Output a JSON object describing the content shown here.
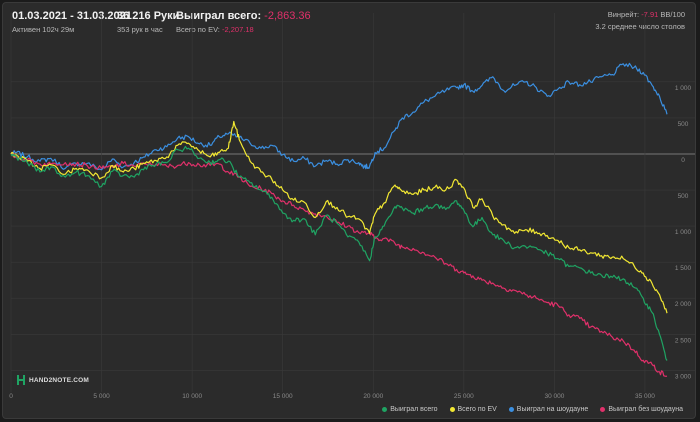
{
  "header": {
    "date_range": "01.03.2021 - 31.03.2021",
    "active": "Активен 102ч 29м",
    "hands": "36 216 Руки",
    "hands_per_hour": "353 рук в час",
    "won_total_label": "Выиграл всего:",
    "won_total_value": "-2,863.36",
    "ev_total_label": "Всего по EV:",
    "ev_total_value": "-2,207.18",
    "winrate_label": "Винрейт:",
    "winrate_value": "-7.91",
    "winrate_unit": "BB/100",
    "tables": "3.2 среднее число столов"
  },
  "logo_text": "HAND2NOTE.COM",
  "colors": {
    "background": "#2b2b2b",
    "won_total": "#1fa463",
    "ev": "#f2e832",
    "showdown": "#3b8fe0",
    "non_showdown": "#e0306a",
    "zero_line": "#777777",
    "grid": "#3a3a3a"
  },
  "chart_data": {
    "type": "line",
    "x_ticks": [
      0,
      5000,
      10000,
      15000,
      20000,
      25000,
      30000,
      35000
    ],
    "x_tick_labels": [
      "0",
      "5 000",
      "10 000",
      "15 000",
      "20 000",
      "25 000",
      "30 000",
      "35 000"
    ],
    "y_ticks": [
      1000,
      500,
      0,
      -500,
      -1000,
      -1500,
      -2000,
      -2500,
      -3000
    ],
    "y_tick_labels": [
      "1 000",
      "500",
      "0",
      "500",
      "1 000",
      "1 500",
      "2 000",
      "2 500",
      "3 000"
    ],
    "xlim": [
      0,
      36216
    ],
    "ylim": [
      -3300,
      1400
    ],
    "legend_position": "bottom-right",
    "grid": true,
    "series": [
      {
        "name": "Выиграл всего",
        "color": "#1fa463",
        "points": [
          [
            0,
            0
          ],
          [
            300,
            -40
          ],
          [
            900,
            -120
          ],
          [
            1600,
            -250
          ],
          [
            2200,
            -180
          ],
          [
            3000,
            -320
          ],
          [
            3600,
            -250
          ],
          [
            4200,
            -300
          ],
          [
            5000,
            -450
          ],
          [
            5600,
            -240
          ],
          [
            6200,
            -300
          ],
          [
            6800,
            -320
          ],
          [
            7400,
            -180
          ],
          [
            8000,
            -150
          ],
          [
            8600,
            -120
          ],
          [
            9200,
            60
          ],
          [
            9800,
            80
          ],
          [
            10400,
            -60
          ],
          [
            11000,
            -120
          ],
          [
            11500,
            -80
          ],
          [
            12000,
            -100
          ],
          [
            12600,
            -320
          ],
          [
            13200,
            -400
          ],
          [
            13800,
            -500
          ],
          [
            14400,
            -600
          ],
          [
            15000,
            -820
          ],
          [
            15600,
            -920
          ],
          [
            16200,
            -900
          ],
          [
            16800,
            -1120
          ],
          [
            17400,
            -850
          ],
          [
            18000,
            -960
          ],
          [
            18600,
            -1150
          ],
          [
            19200,
            -1220
          ],
          [
            19800,
            -1480
          ],
          [
            20100,
            -1150
          ],
          [
            20600,
            -1000
          ],
          [
            21200,
            -730
          ],
          [
            21600,
            -750
          ],
          [
            22200,
            -820
          ],
          [
            22800,
            -750
          ],
          [
            23400,
            -710
          ],
          [
            24000,
            -770
          ],
          [
            24600,
            -650
          ],
          [
            25000,
            -780
          ],
          [
            25500,
            -1010
          ],
          [
            26000,
            -880
          ],
          [
            26600,
            -1120
          ],
          [
            27200,
            -1200
          ],
          [
            27800,
            -1300
          ],
          [
            28400,
            -1280
          ],
          [
            29000,
            -1300
          ],
          [
            29600,
            -1380
          ],
          [
            30200,
            -1450
          ],
          [
            30800,
            -1560
          ],
          [
            31400,
            -1580
          ],
          [
            32000,
            -1650
          ],
          [
            32600,
            -1680
          ],
          [
            33200,
            -1710
          ],
          [
            33800,
            -1730
          ],
          [
            34400,
            -1850
          ],
          [
            34900,
            -2000
          ],
          [
            35400,
            -2200
          ],
          [
            35800,
            -2500
          ],
          [
            36216,
            -2863
          ]
        ]
      },
      {
        "name": "Всего по EV",
        "color": "#f2e832",
        "points": [
          [
            0,
            0
          ],
          [
            300,
            -20
          ],
          [
            900,
            -100
          ],
          [
            1600,
            -200
          ],
          [
            2200,
            -150
          ],
          [
            3000,
            -280
          ],
          [
            3600,
            -200
          ],
          [
            4200,
            -220
          ],
          [
            5000,
            -330
          ],
          [
            5600,
            -160
          ],
          [
            6200,
            -250
          ],
          [
            6800,
            -200
          ],
          [
            7400,
            -130
          ],
          [
            8000,
            -90
          ],
          [
            8600,
            -40
          ],
          [
            9200,
            120
          ],
          [
            9800,
            150
          ],
          [
            10400,
            40
          ],
          [
            11000,
            -40
          ],
          [
            11500,
            20
          ],
          [
            12000,
            80
          ],
          [
            12300,
            450
          ],
          [
            12600,
            200
          ],
          [
            13200,
            -100
          ],
          [
            13800,
            -250
          ],
          [
            14400,
            -350
          ],
          [
            15000,
            -500
          ],
          [
            15600,
            -640
          ],
          [
            16200,
            -670
          ],
          [
            16800,
            -880
          ],
          [
            17400,
            -660
          ],
          [
            18000,
            -740
          ],
          [
            18600,
            -870
          ],
          [
            19200,
            -900
          ],
          [
            19800,
            -1100
          ],
          [
            20100,
            -830
          ],
          [
            20600,
            -680
          ],
          [
            21200,
            -430
          ],
          [
            21600,
            -520
          ],
          [
            22200,
            -560
          ],
          [
            22800,
            -500
          ],
          [
            23400,
            -460
          ],
          [
            24000,
            -500
          ],
          [
            24600,
            -360
          ],
          [
            25000,
            -470
          ],
          [
            25500,
            -740
          ],
          [
            26000,
            -620
          ],
          [
            26600,
            -860
          ],
          [
            27200,
            -980
          ],
          [
            27800,
            -1100
          ],
          [
            28400,
            -1050
          ],
          [
            29000,
            -1080
          ],
          [
            29600,
            -1130
          ],
          [
            30200,
            -1200
          ],
          [
            30800,
            -1300
          ],
          [
            31400,
            -1330
          ],
          [
            32000,
            -1370
          ],
          [
            32600,
            -1410
          ],
          [
            33200,
            -1430
          ],
          [
            33800,
            -1450
          ],
          [
            34400,
            -1550
          ],
          [
            34900,
            -1650
          ],
          [
            35400,
            -1800
          ],
          [
            35800,
            -1950
          ],
          [
            36216,
            -2207
          ]
        ]
      },
      {
        "name": "Выиграл на шоудауне",
        "color": "#3b8fe0",
        "points": [
          [
            0,
            0
          ],
          [
            300,
            20
          ],
          [
            900,
            -40
          ],
          [
            1600,
            -100
          ],
          [
            2200,
            -60
          ],
          [
            3000,
            -200
          ],
          [
            3600,
            -130
          ],
          [
            4200,
            -130
          ],
          [
            5000,
            -220
          ],
          [
            5600,
            -70
          ],
          [
            6200,
            -180
          ],
          [
            6800,
            -120
          ],
          [
            7400,
            -40
          ],
          [
            8000,
            60
          ],
          [
            8600,
            100
          ],
          [
            9200,
            220
          ],
          [
            9800,
            240
          ],
          [
            10400,
            140
          ],
          [
            11000,
            120
          ],
          [
            11500,
            240
          ],
          [
            12000,
            280
          ],
          [
            12600,
            230
          ],
          [
            13200,
            150
          ],
          [
            13800,
            80
          ],
          [
            14400,
            120
          ],
          [
            15000,
            -10
          ],
          [
            15600,
            -100
          ],
          [
            16200,
            -60
          ],
          [
            16800,
            -170
          ],
          [
            17400,
            -90
          ],
          [
            18000,
            -140
          ],
          [
            18600,
            -80
          ],
          [
            19200,
            -120
          ],
          [
            19500,
            -180
          ],
          [
            19800,
            -170
          ],
          [
            20100,
            20
          ],
          [
            20600,
            80
          ],
          [
            21200,
            330
          ],
          [
            21600,
            500
          ],
          [
            22200,
            580
          ],
          [
            22800,
            720
          ],
          [
            23400,
            800
          ],
          [
            24000,
            880
          ],
          [
            24600,
            920
          ],
          [
            25000,
            960
          ],
          [
            25500,
            870
          ],
          [
            26000,
            950
          ],
          [
            26600,
            1070
          ],
          [
            27200,
            880
          ],
          [
            27800,
            950
          ],
          [
            28400,
            1000
          ],
          [
            29000,
            920
          ],
          [
            29600,
            800
          ],
          [
            30200,
            900
          ],
          [
            30800,
            1000
          ],
          [
            31400,
            960
          ],
          [
            32000,
            1000
          ],
          [
            32600,
            1070
          ],
          [
            33200,
            1100
          ],
          [
            33800,
            1250
          ],
          [
            34400,
            1200
          ],
          [
            34900,
            1130
          ],
          [
            35400,
            950
          ],
          [
            35800,
            800
          ],
          [
            36216,
            550
          ]
        ]
      },
      {
        "name": "Выиграл без шоудауна",
        "color": "#e0306a",
        "points": [
          [
            0,
            0
          ],
          [
            300,
            -40
          ],
          [
            900,
            -80
          ],
          [
            1600,
            -140
          ],
          [
            2200,
            -140
          ],
          [
            3000,
            -120
          ],
          [
            3600,
            -140
          ],
          [
            4200,
            -160
          ],
          [
            5000,
            -200
          ],
          [
            5600,
            -180
          ],
          [
            6200,
            -130
          ],
          [
            6800,
            -170
          ],
          [
            7400,
            -140
          ],
          [
            8000,
            -140
          ],
          [
            8600,
            -170
          ],
          [
            9200,
            -160
          ],
          [
            9800,
            -120
          ],
          [
            10400,
            -150
          ],
          [
            11000,
            -160
          ],
          [
            11500,
            -140
          ],
          [
            12000,
            -250
          ],
          [
            12600,
            -320
          ],
          [
            13200,
            -450
          ],
          [
            13800,
            -480
          ],
          [
            14400,
            -550
          ],
          [
            15000,
            -650
          ],
          [
            15600,
            -710
          ],
          [
            16200,
            -780
          ],
          [
            16800,
            -830
          ],
          [
            17400,
            -860
          ],
          [
            18000,
            -950
          ],
          [
            18600,
            -1000
          ],
          [
            19200,
            -1090
          ],
          [
            19800,
            -1100
          ],
          [
            20100,
            -1170
          ],
          [
            20600,
            -1170
          ],
          [
            21200,
            -1240
          ],
          [
            21600,
            -1290
          ],
          [
            22200,
            -1310
          ],
          [
            22800,
            -1370
          ],
          [
            23400,
            -1430
          ],
          [
            24000,
            -1520
          ],
          [
            24600,
            -1600
          ],
          [
            25000,
            -1650
          ],
          [
            25500,
            -1690
          ],
          [
            26000,
            -1750
          ],
          [
            26600,
            -1790
          ],
          [
            27200,
            -1860
          ],
          [
            27800,
            -1890
          ],
          [
            28400,
            -1950
          ],
          [
            29000,
            -2000
          ],
          [
            29600,
            -2060
          ],
          [
            30200,
            -2100
          ],
          [
            30800,
            -2230
          ],
          [
            31400,
            -2280
          ],
          [
            32000,
            -2400
          ],
          [
            32600,
            -2460
          ],
          [
            33200,
            -2540
          ],
          [
            33800,
            -2590
          ],
          [
            34400,
            -2720
          ],
          [
            34900,
            -2860
          ],
          [
            35400,
            -2920
          ],
          [
            35800,
            -3020
          ],
          [
            36216,
            -3080
          ]
        ]
      }
    ]
  }
}
